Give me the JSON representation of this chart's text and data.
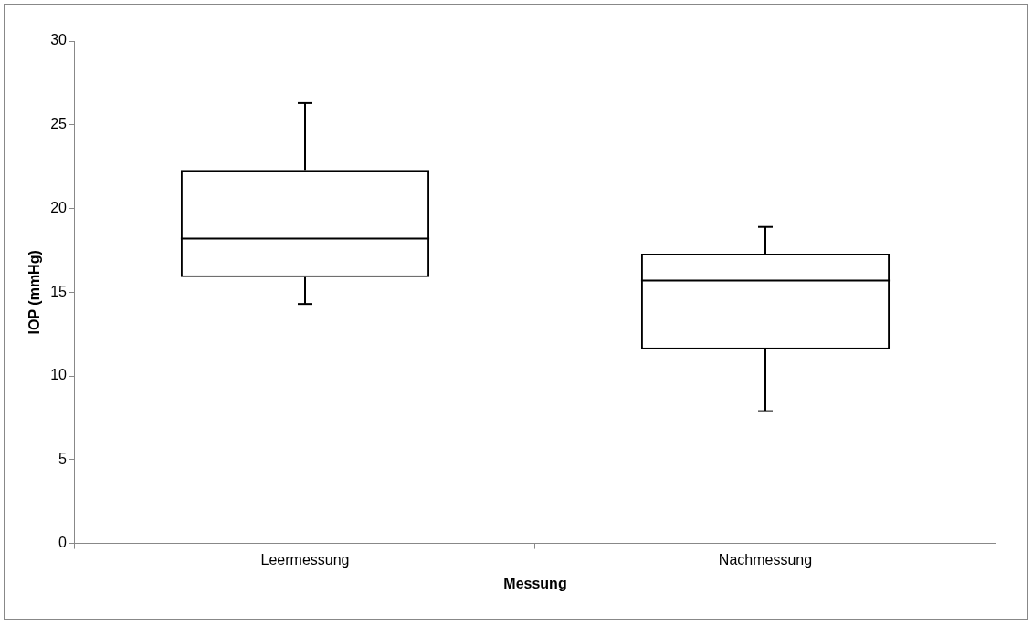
{
  "chart_data": {
    "type": "box",
    "xlabel": "Messung",
    "ylabel": "IOP (mmHg)",
    "categories": [
      "Leermessung",
      "Nachmessung"
    ],
    "boxes": [
      {
        "low": 14.3,
        "q1": 15.9,
        "median": 18.2,
        "q3": 22.3,
        "high": 26.3
      },
      {
        "low": 7.9,
        "q1": 11.6,
        "median": 15.7,
        "q3": 17.3,
        "high": 18.9
      }
    ],
    "ylim": [
      0,
      30
    ],
    "yticks": [
      0,
      5,
      10,
      15,
      20,
      25,
      30
    ],
    "grid": false,
    "legend": false
  }
}
